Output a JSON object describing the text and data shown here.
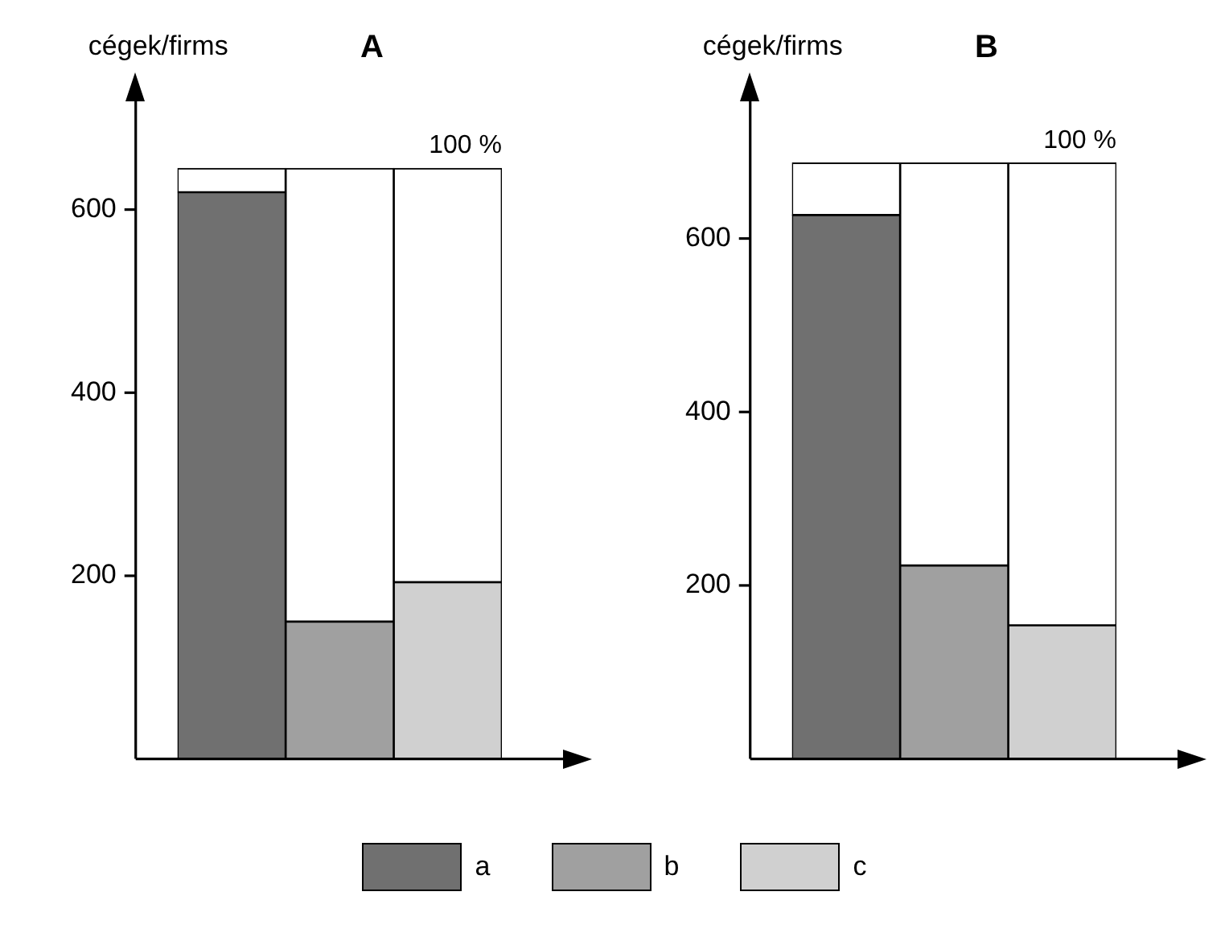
{
  "chart_data": [
    {
      "type": "bar",
      "title": "A",
      "ylabel": "cégek/firms",
      "categories": [
        null,
        null,
        null
      ],
      "stacked": true,
      "ylim": [
        0,
        720
      ],
      "yticks": [
        200,
        400,
        600
      ],
      "grid": false,
      "legend": "bottom",
      "annotations": [
        "100 %"
      ],
      "series": [
        {
          "name": "a",
          "color": "#707070",
          "values": [
            619,
            null,
            null
          ]
        },
        {
          "name": "b",
          "color": "#a0a0a0",
          "values": [
            null,
            150,
            null
          ]
        },
        {
          "name": "c",
          "color": "#d0d0d0",
          "values": [
            null,
            null,
            193
          ]
        },
        {
          "color": "#ffffff",
          "values": [
            26,
            495,
            452
          ]
        }
      ]
    },
    {
      "type": "bar",
      "title": "B",
      "ylabel": "cégek/firms",
      "categories": [
        null,
        null,
        null
      ],
      "stacked": true,
      "ylim": [
        0,
        760
      ],
      "yticks": [
        200,
        400,
        600
      ],
      "grid": false,
      "annotations": [
        "100 %"
      ],
      "series": [
        {
          "color": "#707070",
          "values": [
            627,
            null,
            null
          ]
        },
        {
          "color": "#a0a0a0",
          "values": [
            null,
            223,
            null
          ]
        },
        {
          "color": "#d0d0d0",
          "values": [
            null,
            null,
            154
          ]
        },
        {
          "color": "#ffffff",
          "values": [
            60,
            464,
            533
          ]
        }
      ]
    }
  ]
}
